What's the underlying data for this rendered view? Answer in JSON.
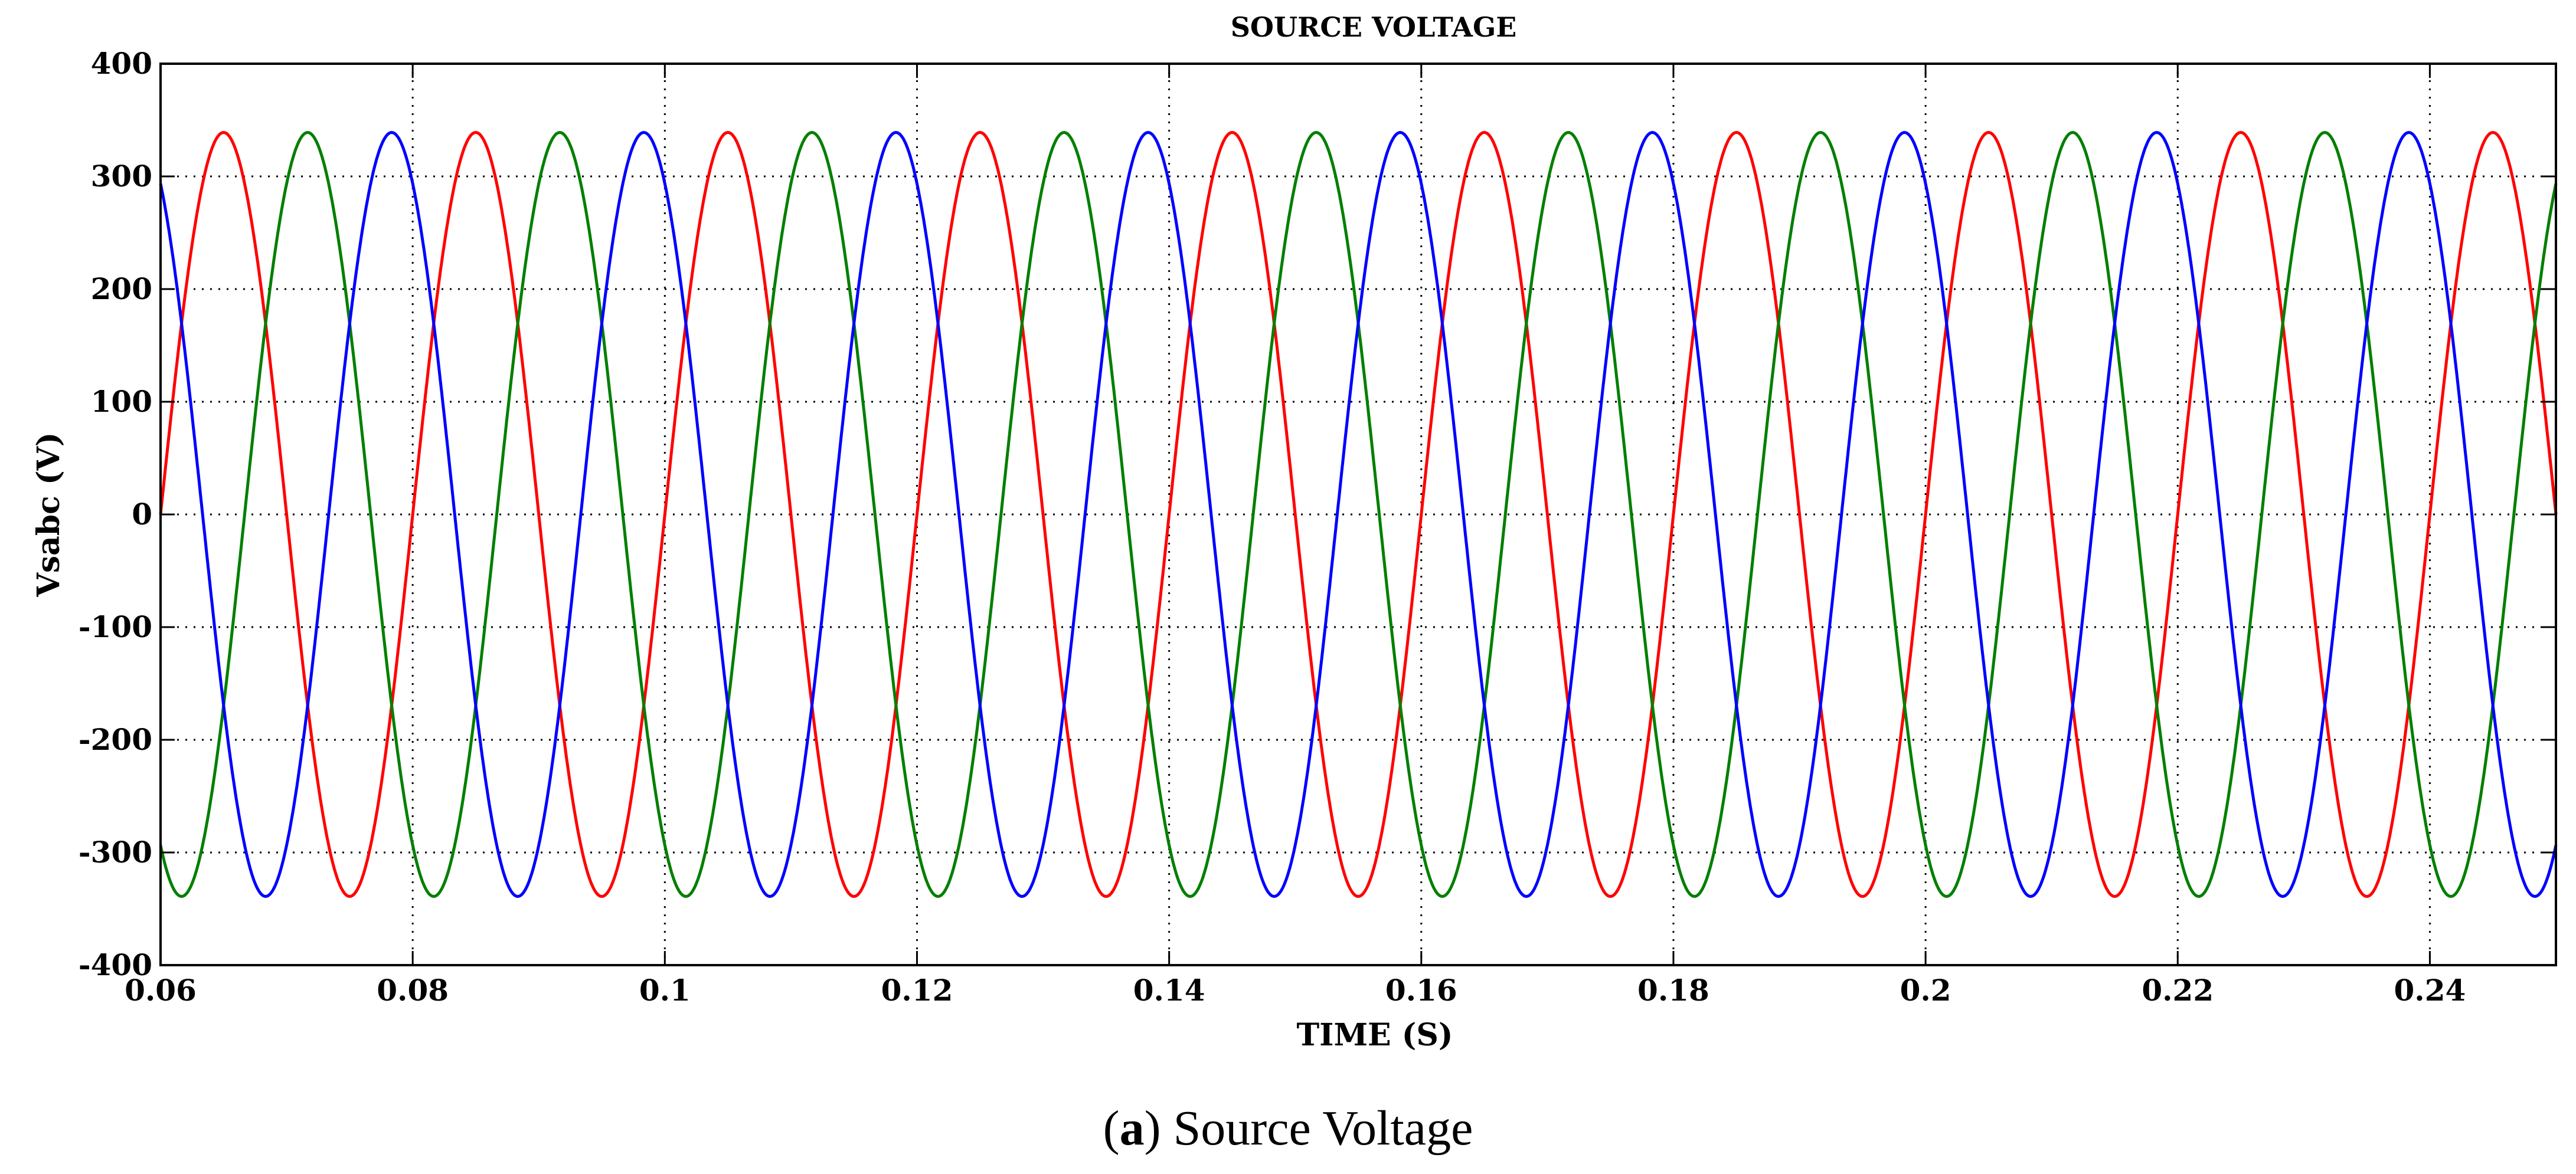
{
  "chart_data": {
    "type": "line",
    "title": "SOURCE VOLTAGE",
    "xlabel": "TIME (S)",
    "ylabel": "Vsabc (V)",
    "xlim": [
      0.06,
      0.25
    ],
    "ylim": [
      -400,
      400
    ],
    "x_ticks": [
      0.06,
      0.08,
      0.1,
      0.12,
      0.14,
      0.16,
      0.18,
      0.2,
      0.22,
      0.24
    ],
    "x_tick_labels": [
      "0.06",
      "0.08",
      "0.1",
      "0.12",
      "0.14",
      "0.16",
      "0.18",
      "0.2",
      "0.22",
      "0.24"
    ],
    "y_ticks": [
      -400,
      -300,
      -200,
      -100,
      0,
      100,
      200,
      300,
      400
    ],
    "y_tick_labels": [
      "-400",
      "-300",
      "-200",
      "-100",
      "0",
      "100",
      "200",
      "300",
      "400"
    ],
    "grid": true,
    "grid_style": "dotted",
    "series": [
      {
        "color": "#ff0000",
        "amplitude": 339,
        "frequency_hz": 50,
        "phase_deg": 0
      },
      {
        "color": "#007f00",
        "amplitude": 339,
        "frequency_hz": 50,
        "phase_deg": -120
      },
      {
        "color": "#0000ff",
        "amplitude": 339,
        "frequency_hz": 50,
        "phase_deg": 120
      }
    ]
  },
  "caption": {
    "open": "(",
    "letter": "a",
    "close": ")",
    "text": " Source Voltage"
  }
}
